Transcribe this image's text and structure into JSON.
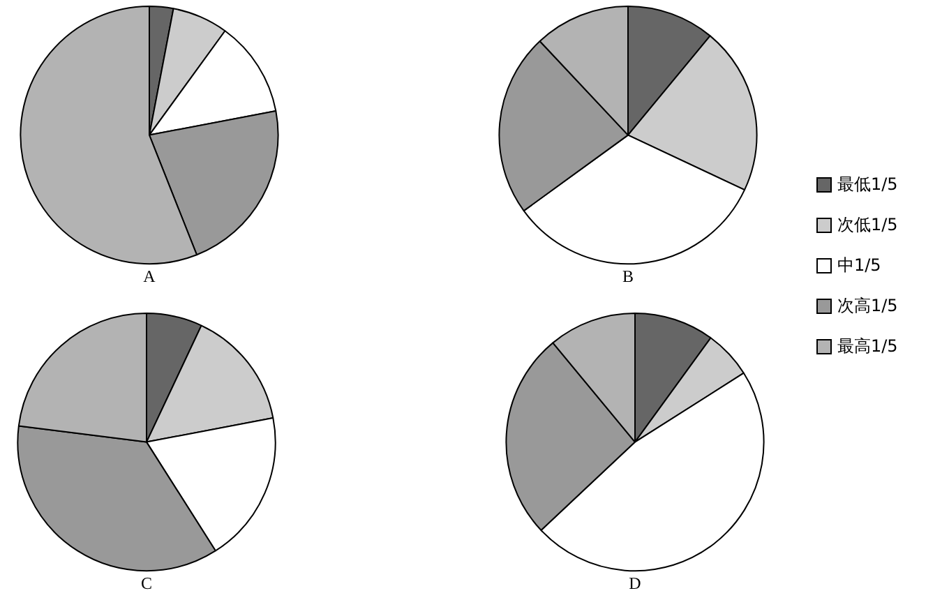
{
  "chart_data": [
    {
      "type": "pie",
      "title": "A",
      "categories": [
        "最低1/5",
        "次低1/5",
        "中1/5",
        "次高1/5",
        "最高1/5"
      ],
      "values": [
        3,
        7,
        12,
        22,
        56
      ],
      "colors": [
        "#666666",
        "#cccccc",
        "#ffffff",
        "#999999",
        "#b3b3b3"
      ],
      "legend": "right"
    },
    {
      "type": "pie",
      "title": "B",
      "categories": [
        null,
        null,
        null,
        null,
        null
      ],
      "values": [
        11,
        21,
        33,
        23,
        12
      ],
      "colors": [
        "#666666",
        "#cccccc",
        "#ffffff",
        "#999999",
        "#b3b3b3"
      ]
    },
    {
      "type": "pie",
      "title": "C",
      "categories": [
        null,
        null,
        null,
        null,
        null
      ],
      "values": [
        7,
        15,
        19,
        36,
        23
      ],
      "colors": [
        "#666666",
        "#cccccc",
        "#ffffff",
        "#999999",
        "#b3b3b3"
      ]
    },
    {
      "type": "pie",
      "title": "D",
      "categories": [
        null,
        null,
        null,
        null,
        null
      ],
      "values": [
        10,
        6,
        47,
        26,
        11
      ],
      "colors": [
        "#666666",
        "#cccccc",
        "#ffffff",
        "#999999",
        "#b3b3b3"
      ]
    }
  ]
}
